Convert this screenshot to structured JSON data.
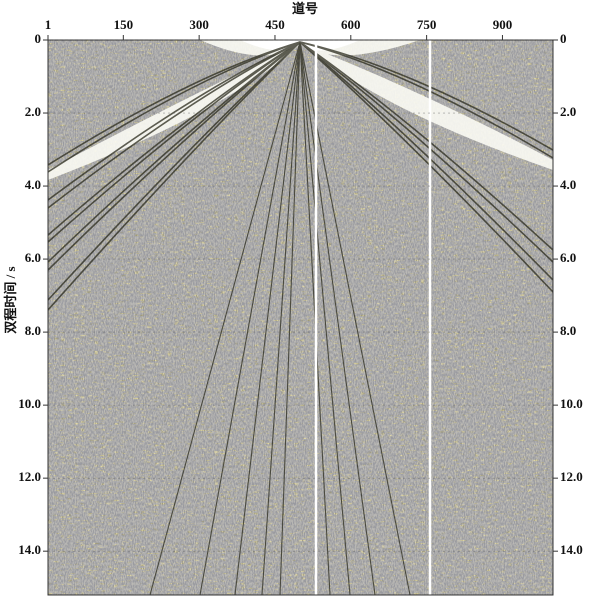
{
  "chart_data": {
    "type": "seismic",
    "title": "道号",
    "ylabel": "双程时间 / s",
    "xlim": [
      1,
      1000
    ],
    "xticks": [
      1,
      150,
      300,
      450,
      600,
      750,
      900
    ],
    "ylim": [
      0,
      15.2
    ],
    "yticks": [
      0,
      {
        "value": 2,
        "label": "2.0"
      },
      {
        "value": 4,
        "label": "4.0"
      },
      {
        "value": 6,
        "label": "6.0"
      },
      {
        "value": 8,
        "label": "8.0"
      },
      {
        "value": 10,
        "label": "10.0"
      },
      {
        "value": 12,
        "label": "12.0"
      },
      {
        "value": 14,
        "label": "14.0"
      }
    ],
    "grid": true
  }
}
